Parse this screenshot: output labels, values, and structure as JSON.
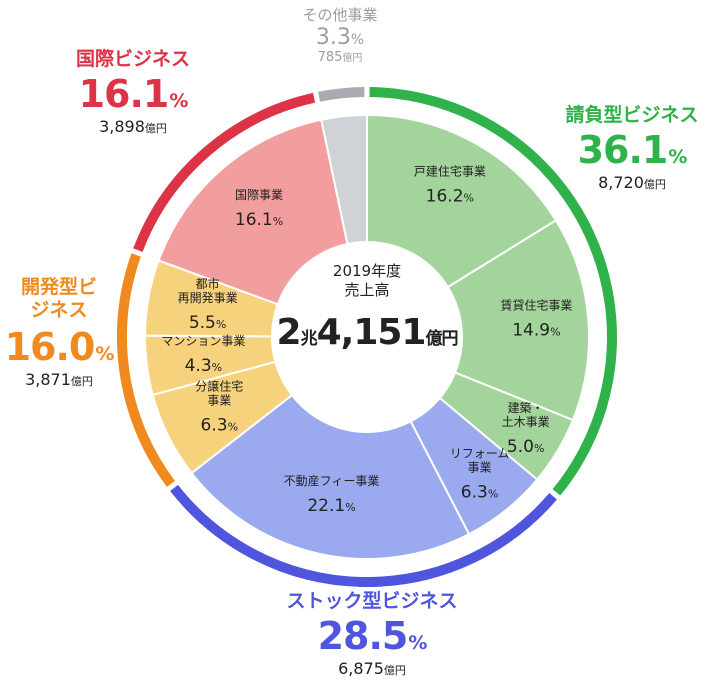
{
  "chart_data": {
    "type": "pie",
    "subtype": "nested-donut",
    "center": {
      "line1": "2019年度",
      "line2": "売上高",
      "total_big": "2",
      "total_big_unit": "兆",
      "total_rest": "4,151",
      "total_unit": "億円"
    },
    "outer_ring": [
      {
        "name": "請負型ビジネス",
        "percent": 36.1,
        "percent_text": "36.1",
        "amount": "8,720",
        "color": "#2fb24a"
      },
      {
        "name": "ストック型ビジネス",
        "percent": 28.5,
        "percent_text": "28.5",
        "amount": "6,875",
        "color": "#4f56dd"
      },
      {
        "name": "開発型ビジネス",
        "percent": 16.0,
        "percent_text": "16.0",
        "amount": "3,871",
        "color": "#f08a1e"
      },
      {
        "name": "国際ビジネス",
        "percent": 16.1,
        "percent_text": "16.1",
        "amount": "3,898",
        "color": "#dd3347"
      },
      {
        "name": "その他事業",
        "percent": 3.3,
        "percent_text": "3.3",
        "amount": "785",
        "color": "#a8abb0"
      }
    ],
    "inner_ring": [
      {
        "label": "戸建住宅事業",
        "value": 16.2,
        "value_text": "16.2",
        "color": "#a3d49b"
      },
      {
        "label": "賃貸住宅事業",
        "value": 14.9,
        "value_text": "14.9",
        "color": "#a3d49b"
      },
      {
        "label": "建築・土木事業",
        "value": 5.0,
        "value_text": "5.0",
        "color": "#a3d49b"
      },
      {
        "label": "リフォーム事業",
        "value": 6.3,
        "value_text": "6.3",
        "color": "#9ba9ef"
      },
      {
        "label": "不動産フィー事業",
        "value": 22.1,
        "value_text": "22.1",
        "color": "#9ba9ef"
      },
      {
        "label": "分譲住宅事業",
        "value": 6.3,
        "value_text": "6.3",
        "color": "#f6d27c"
      },
      {
        "label": "マンション事業",
        "value": 4.3,
        "value_text": "4.3",
        "color": "#f6d27c"
      },
      {
        "label": "都市再開発事業",
        "value": 5.5,
        "value_text": "5.5",
        "color": "#f6d27c"
      },
      {
        "label": "国際事業",
        "value": 16.1,
        "value_text": "16.1",
        "color": "#f39e9e"
      },
      {
        "label": "その他",
        "value": 3.3,
        "value_text": "",
        "color": "#cfd2d6"
      }
    ],
    "percent_sign": "%",
    "amount_unit": "億円"
  }
}
